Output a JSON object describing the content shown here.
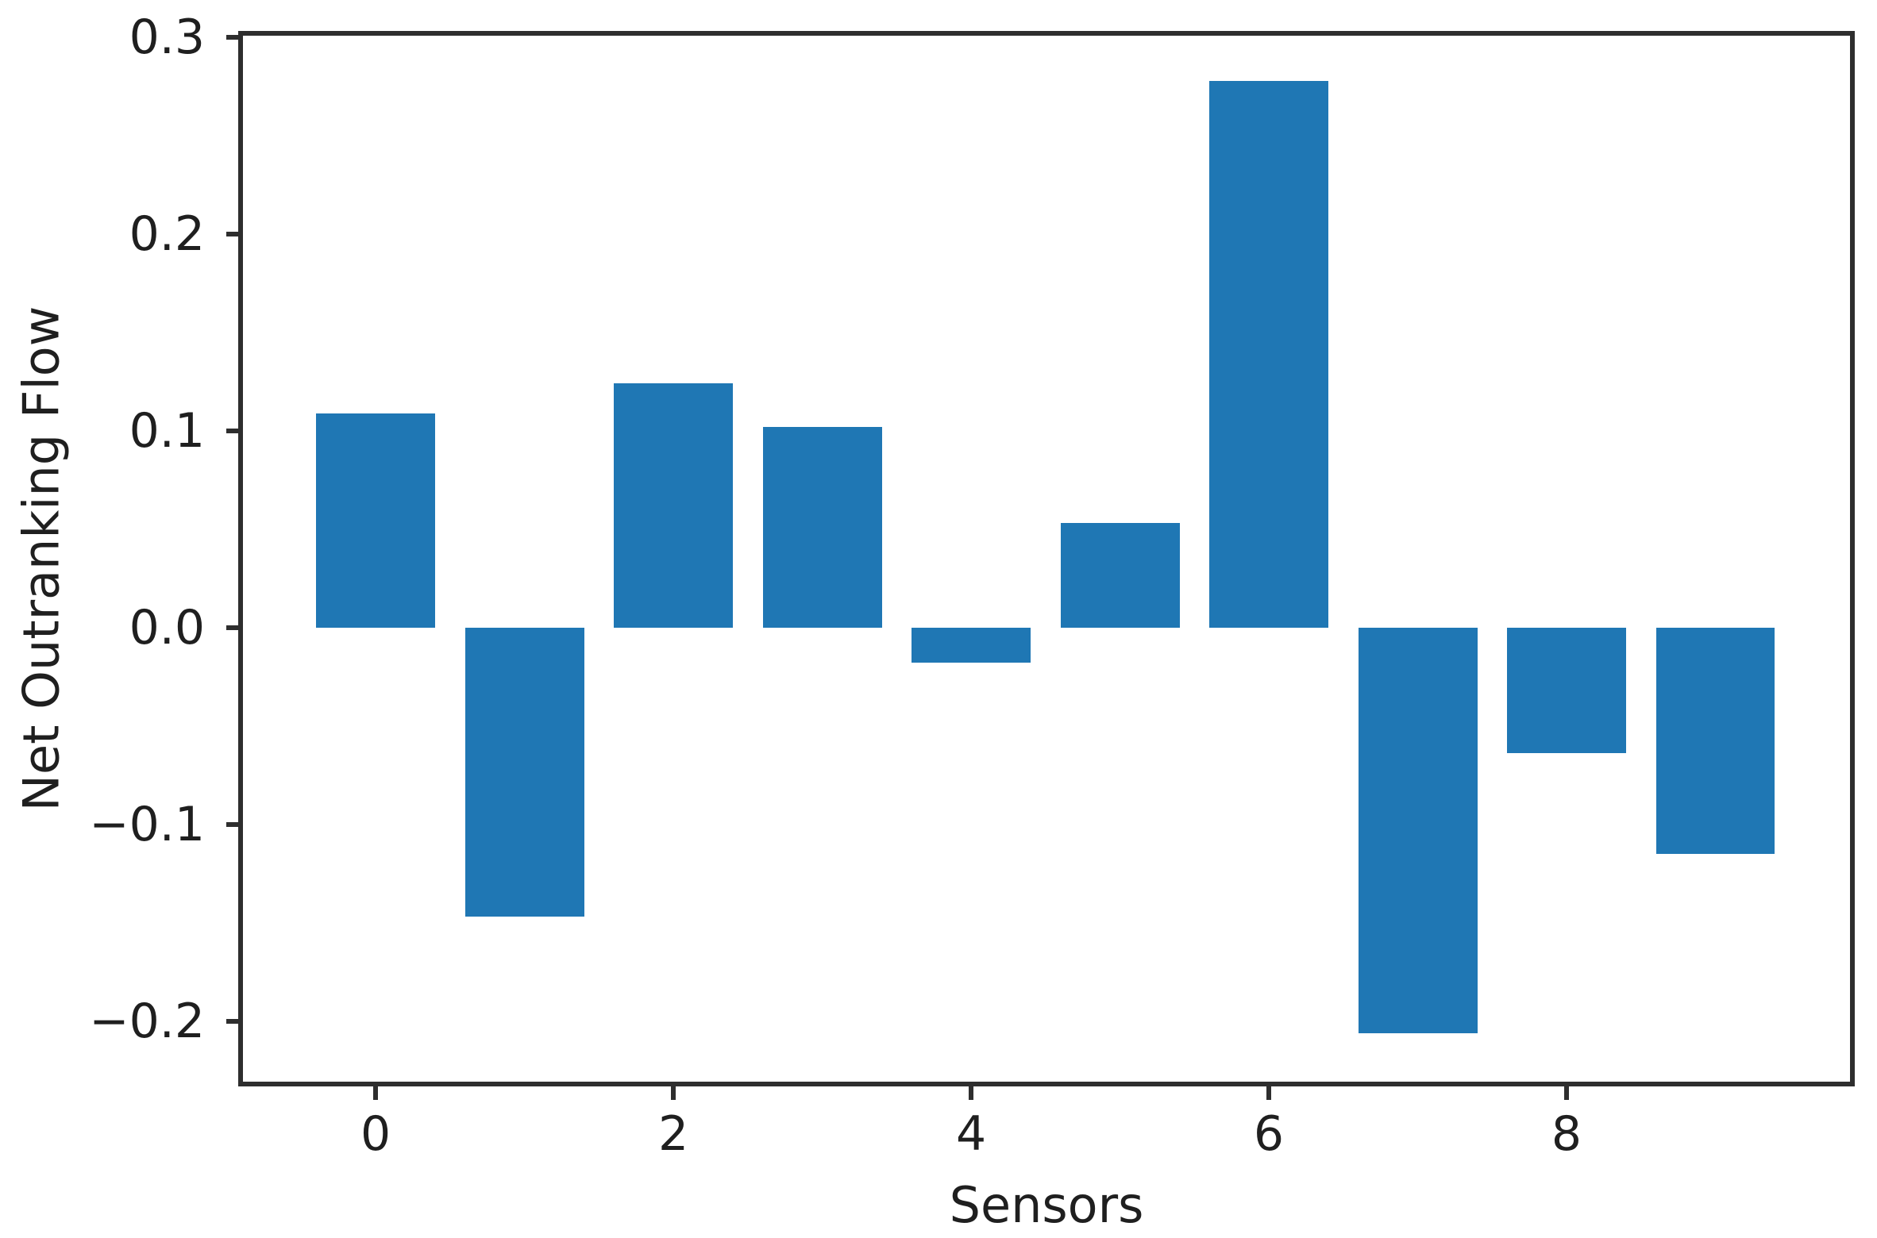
{
  "figure": {
    "background": "#ffffff"
  },
  "chart_data": {
    "type": "bar",
    "title": "",
    "xlabel": "Sensors",
    "ylabel": "Net Outranking Flow",
    "categories": [
      0,
      1,
      2,
      3,
      4,
      5,
      6,
      7,
      8,
      9
    ],
    "values": [
      0.109,
      -0.147,
      0.124,
      0.102,
      -0.018,
      0.053,
      0.278,
      -0.206,
      -0.064,
      -0.115
    ],
    "bar_color": "#1f77b4",
    "bar_width": 0.8,
    "xlim": [
      -0.907,
      9.92
    ],
    "ylim": [
      -0.232,
      0.302
    ],
    "xticks": {
      "values": [
        0,
        2,
        4,
        6,
        8
      ],
      "labels": [
        "0",
        "2",
        "4",
        "6",
        "8"
      ]
    },
    "yticks": {
      "values": [
        0.3,
        0.2,
        0.1,
        0.0,
        -0.1,
        -0.2
      ],
      "labels": [
        "0.3",
        "0.2",
        "0.1",
        "0.0",
        "−0.1",
        "−0.2"
      ]
    },
    "grid": false,
    "legend": null,
    "axis_color": "#2e2e2e",
    "text_color": "#1f1f1f"
  }
}
